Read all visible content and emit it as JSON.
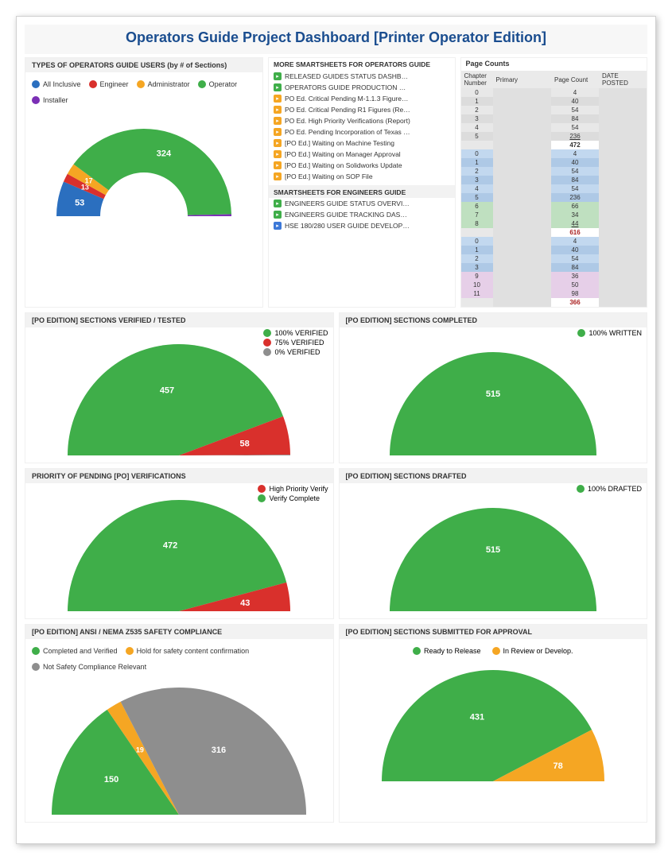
{
  "page_title": "Operators Guide Project Dashboard [Printer Operator Edition]",
  "colors": {
    "green": "#3fae49",
    "red": "#d9302c",
    "orange": "#f5a623",
    "gray": "#8e8e8e",
    "blue": "#2b6fbf",
    "purple": "#7b2fb5"
  },
  "doughnut": {
    "title": "TYPES OF OPERATORS GUIDE USERS (by # of Sections)",
    "legend": [
      {
        "label": "All Inclusive",
        "color": "#2b6fbf"
      },
      {
        "label": "Engineer",
        "color": "#d9302c"
      },
      {
        "label": "Administrator",
        "color": "#f5a623"
      },
      {
        "label": "Operator",
        "color": "#3fae49"
      },
      {
        "label": "Installer",
        "color": "#7b2fb5"
      }
    ],
    "values": {
      "blue": 53,
      "red": 13,
      "orange": 17,
      "green": 324,
      "purple": 3
    }
  },
  "ss1": {
    "title": "MORE SMARTSHEETS FOR OPERATORS GUIDE",
    "items": [
      {
        "icon": "green",
        "label": "RELEASED GUIDES STATUS DASHB…"
      },
      {
        "icon": "green",
        "label": "OPERATORS GUIDE PRODUCTION …"
      },
      {
        "icon": "orange",
        "label": "PO Ed. Critical Pending M-1.1.3 Figure…"
      },
      {
        "icon": "orange",
        "label": "PO Ed. Critical Pending R1 Figures (Re…"
      },
      {
        "icon": "orange",
        "label": "PO Ed. High Priority Verifications (Report)"
      },
      {
        "icon": "orange",
        "label": "PO Ed. Pending Incorporation of Texas …"
      },
      {
        "icon": "orange",
        "label": "[PO Ed.] Waiting on Machine Testing"
      },
      {
        "icon": "orange",
        "label": "[PO Ed.] Waiting on Manager Approval"
      },
      {
        "icon": "orange",
        "label": "[PO Ed.] Waiting on Solidworks Update"
      },
      {
        "icon": "orange",
        "label": "[PO Ed.] Waiting on SOP File"
      }
    ]
  },
  "ss2": {
    "title": "SMARTSHEETS FOR ENGINEERS GUIDE",
    "items": [
      {
        "icon": "green",
        "label": "ENGINEERS GUIDE STATUS OVERVI…"
      },
      {
        "icon": "green",
        "label": "ENGINEERS GUIDE TRACKING DAS…"
      },
      {
        "icon": "blue",
        "label": "HSE 180/280 USER GUIDE DEVELOP…"
      }
    ]
  },
  "table": {
    "title": "Page Counts",
    "headers": [
      "Chapter Number",
      "Primary",
      "Page Count",
      "DATE POSTED"
    ],
    "groups": [
      {
        "bgA": "#e8e8e8",
        "bgB": "#dcdcdc",
        "rows": [
          {
            "ch": "0",
            "cnt": "4"
          },
          {
            "ch": "1",
            "cnt": "40"
          },
          {
            "ch": "2",
            "cnt": "54"
          },
          {
            "ch": "3",
            "cnt": "84"
          },
          {
            "ch": "4",
            "cnt": "54"
          },
          {
            "ch": "5",
            "cnt": "236",
            "u": true
          }
        ],
        "total": "472"
      },
      {
        "bgA": "#c2d8ef",
        "bgB": "#aec9e6",
        "rows": [
          {
            "ch": "0",
            "cnt": "4"
          },
          {
            "ch": "1",
            "cnt": "40"
          },
          {
            "ch": "2",
            "cnt": "54"
          },
          {
            "ch": "3",
            "cnt": "84"
          },
          {
            "ch": "4",
            "cnt": "54"
          },
          {
            "ch": "5",
            "cnt": "236"
          }
        ],
        "extra": [
          {
            "ch": "6",
            "cnt": "66",
            "bg": "#bfe0c0"
          },
          {
            "ch": "7",
            "cnt": "34",
            "bg": "#bfe0c0"
          },
          {
            "ch": "8",
            "cnt": "44",
            "bg": "#bfe0c0",
            "u": true
          }
        ],
        "total": "616",
        "totalColor": "#aa2222"
      },
      {
        "bgA": "#c2d8ef",
        "bgB": "#aec9e6",
        "rows": [
          {
            "ch": "0",
            "cnt": "4"
          },
          {
            "ch": "1",
            "cnt": "40"
          },
          {
            "ch": "2",
            "cnt": "54"
          },
          {
            "ch": "3",
            "cnt": "84"
          }
        ],
        "extra": [
          {
            "ch": "9",
            "cnt": "36",
            "bg": "#e6cfe8"
          },
          {
            "ch": "10",
            "cnt": "50",
            "bg": "#e6cfe8"
          },
          {
            "ch": "11",
            "cnt": "98",
            "bg": "#e6cfe8"
          }
        ],
        "total": "366",
        "totalColor": "#aa2222"
      }
    ]
  },
  "verified": {
    "title": "[PO EDITION] SECTIONS VERIFIED / TESTED",
    "legend": [
      {
        "label": "100% VERIFIED",
        "color": "#3fae49"
      },
      {
        "label": "75% VERIFIED",
        "color": "#d9302c"
      },
      {
        "label": "0% VERIFIED",
        "color": "#8e8e8e"
      }
    ],
    "values": {
      "green": 457,
      "red": 58,
      "gray": 1
    }
  },
  "completed": {
    "title": "[PO EDITION] SECTIONS COMPLETED",
    "legend": [
      {
        "label": "100% WRITTEN",
        "color": "#3fae49"
      }
    ],
    "value": 515
  },
  "priority": {
    "title": "PRIORITY OF PENDING [PO] VERIFICATIONS",
    "legend": [
      {
        "label": "High Priority Verify",
        "color": "#d9302c"
      },
      {
        "label": "Verify Complete",
        "color": "#3fae49"
      }
    ],
    "values": {
      "green": 472,
      "red": 43
    }
  },
  "drafted": {
    "title": "[PO EDITION] SECTIONS DRAFTED",
    "legend": [
      {
        "label": "100% DRAFTED",
        "color": "#3fae49"
      }
    ],
    "value": 515
  },
  "ansi": {
    "title": "[PO EDITION] ANSI / NEMA Z535 SAFETY COMPLIANCE",
    "legend": [
      {
        "label": "Completed and Verified",
        "color": "#3fae49"
      },
      {
        "label": "Hold for safety content confirmation",
        "color": "#f5a623"
      },
      {
        "label": "Not Safety Compliance Relevant",
        "color": "#8e8e8e"
      }
    ],
    "values": {
      "green": 150,
      "orange": 19,
      "gray": 316
    }
  },
  "approval": {
    "title": "[PO EDITION] SECTIONS SUBMITTED FOR APPROVAL",
    "legend": [
      {
        "label": "Ready to Release",
        "color": "#3fae49"
      },
      {
        "label": "In Review or Develop.",
        "color": "#f5a623"
      }
    ],
    "values": {
      "green": 431,
      "orange": 78
    }
  }
}
